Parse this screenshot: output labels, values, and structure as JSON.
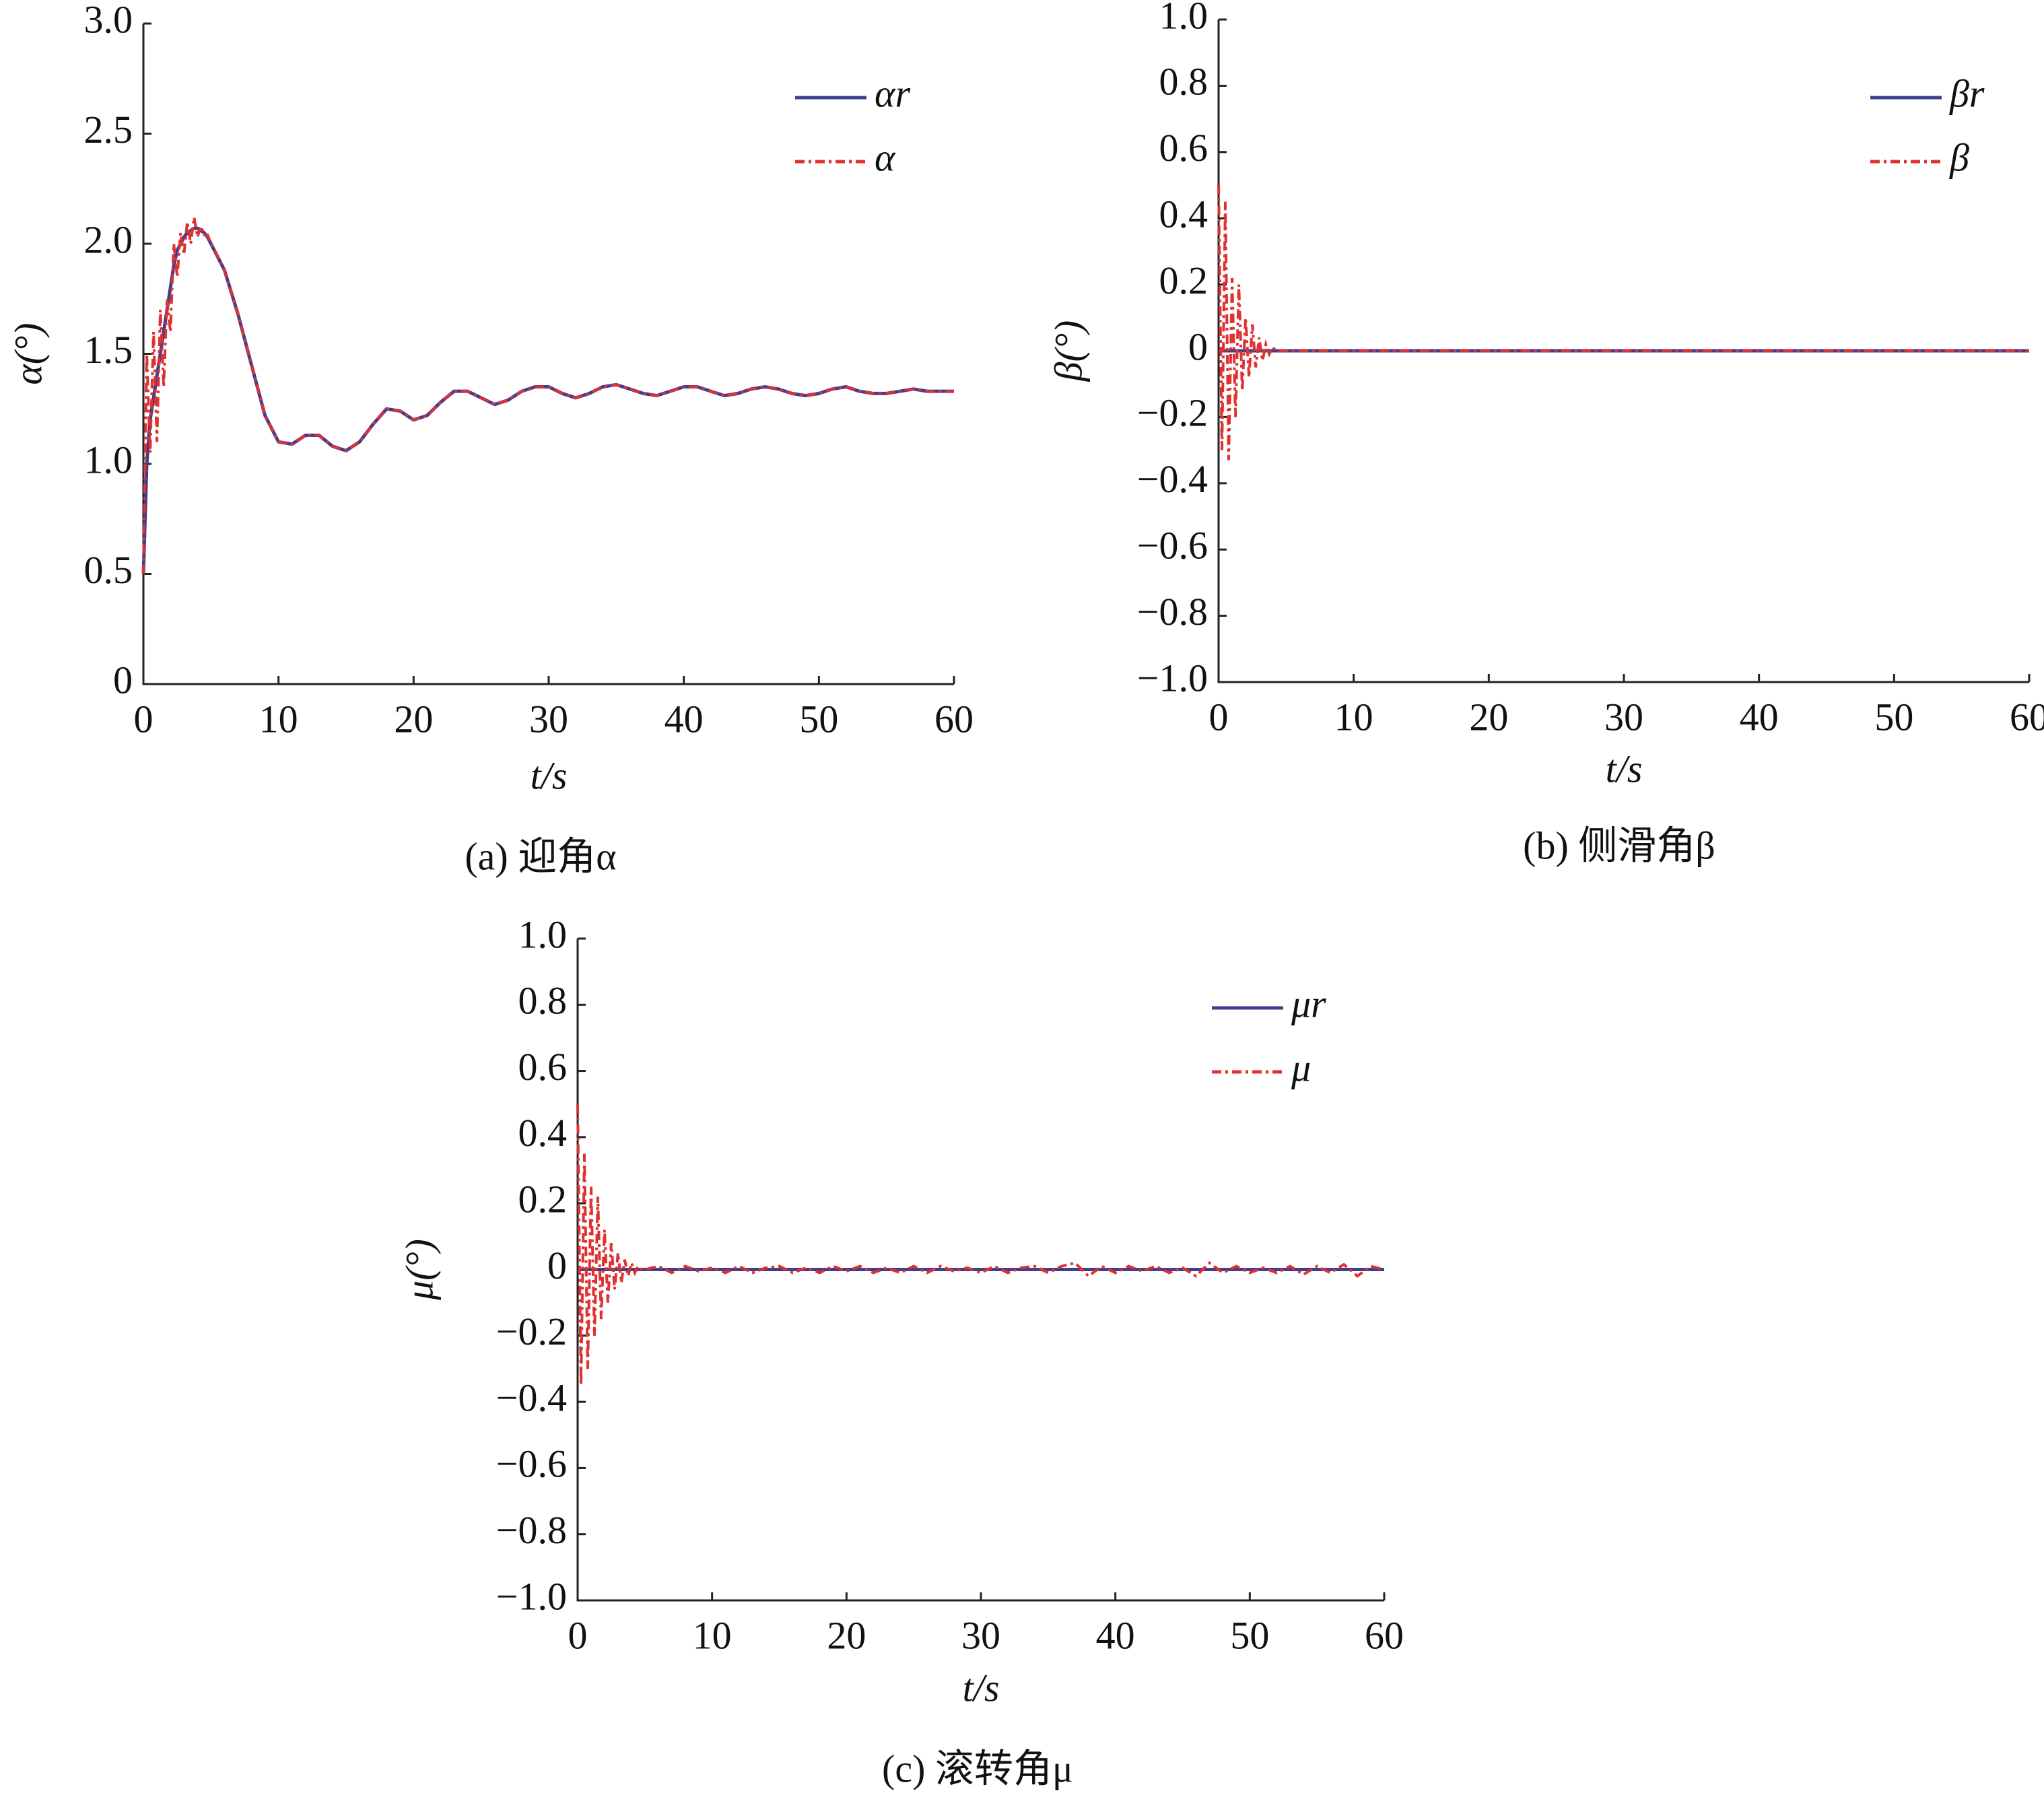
{
  "chart_data": [
    {
      "type": "line",
      "caption": "(a) 迎角α",
      "ylabel": "α(°)",
      "xlabel": "t/s",
      "x": [
        0,
        0.25,
        0.5,
        0.75,
        1,
        1.25,
        1.5,
        1.75,
        2,
        2.25,
        2.5,
        2.75,
        3,
        3.25,
        3.5,
        3.75,
        4,
        4.25,
        4.5,
        4.75,
        5,
        6,
        7,
        8,
        9,
        10,
        11,
        12,
        13,
        14,
        15,
        16,
        17,
        18,
        19,
        20,
        21,
        22,
        23,
        24,
        25,
        26,
        27,
        28,
        29,
        30,
        31,
        32,
        33,
        34,
        35,
        36,
        37,
        38,
        39,
        40,
        41,
        42,
        43,
        44,
        45,
        46,
        47,
        48,
        49,
        50,
        51,
        52,
        53,
        54,
        55,
        56,
        57,
        58,
        59,
        60
      ],
      "series": [
        {
          "name": "αr",
          "color": "#3f3f8f",
          "dash": "solid",
          "values": [
            0.5,
            1.0,
            1.2,
            1.3,
            1.4,
            1.5,
            1.6,
            1.7,
            1.8,
            1.9,
            1.97,
            2.0,
            2.03,
            2.05,
            2.06,
            2.07,
            2.07,
            2.06,
            2.05,
            2.03,
            2.0,
            1.88,
            1.68,
            1.45,
            1.22,
            1.1,
            1.09,
            1.13,
            1.13,
            1.08,
            1.06,
            1.1,
            1.18,
            1.25,
            1.24,
            1.2,
            1.22,
            1.28,
            1.33,
            1.33,
            1.3,
            1.27,
            1.29,
            1.33,
            1.35,
            1.35,
            1.32,
            1.3,
            1.32,
            1.35,
            1.36,
            1.34,
            1.32,
            1.31,
            1.33,
            1.35,
            1.35,
            1.33,
            1.31,
            1.32,
            1.34,
            1.35,
            1.34,
            1.32,
            1.31,
            1.32,
            1.34,
            1.35,
            1.33,
            1.32,
            1.32,
            1.33,
            1.34,
            1.33,
            1.33,
            1.33
          ]
        },
        {
          "name": "α",
          "color": "#e03030",
          "dash": "dashdot",
          "values": [
            0.5,
            1.5,
            1.05,
            1.6,
            1.1,
            1.7,
            1.35,
            1.75,
            1.6,
            2.0,
            1.85,
            2.05,
            1.95,
            2.1,
            2.0,
            2.12,
            2.03,
            2.08,
            2.04,
            2.04,
            2.0,
            1.88,
            1.68,
            1.45,
            1.22,
            1.1,
            1.09,
            1.13,
            1.13,
            1.08,
            1.06,
            1.1,
            1.18,
            1.25,
            1.24,
            1.2,
            1.22,
            1.28,
            1.33,
            1.33,
            1.3,
            1.27,
            1.29,
            1.33,
            1.35,
            1.35,
            1.32,
            1.3,
            1.32,
            1.35,
            1.36,
            1.34,
            1.32,
            1.31,
            1.33,
            1.35,
            1.35,
            1.33,
            1.31,
            1.32,
            1.34,
            1.35,
            1.34,
            1.32,
            1.31,
            1.32,
            1.34,
            1.35,
            1.33,
            1.32,
            1.32,
            1.33,
            1.34,
            1.33,
            1.33,
            1.33
          ]
        }
      ],
      "xlim": [
        0,
        60
      ],
      "xticks": [
        0,
        10,
        20,
        30,
        40,
        50,
        60
      ],
      "ylim": [
        0,
        3
      ],
      "yticks": [
        0,
        0.5,
        {
          "value": 1,
          "label": "1.0"
        },
        1.5,
        {
          "value": 2,
          "label": "2.0"
        },
        2.5,
        {
          "value": 3,
          "label": "3.0"
        }
      ]
    },
    {
      "type": "line",
      "caption": "(b) 侧滑角β",
      "ylabel": "β(°)",
      "xlabel": "t/s",
      "x": [
        0,
        0.25,
        0.5,
        0.75,
        1,
        1.25,
        1.5,
        1.75,
        2,
        2.25,
        2.5,
        2.75,
        3,
        3.25,
        3.5,
        3.75,
        4,
        4.25,
        4.5,
        4.75,
        5,
        6,
        7,
        8,
        9,
        10,
        11,
        12,
        13,
        14,
        15,
        16,
        17,
        18,
        19,
        20,
        21,
        22,
        23,
        24,
        25,
        26,
        27,
        28,
        29,
        30,
        31,
        32,
        33,
        34,
        35,
        36,
        37,
        38,
        39,
        40,
        41,
        42,
        43,
        44,
        45,
        46,
        47,
        48,
        49,
        50,
        51,
        52,
        53,
        54,
        55,
        56,
        57,
        58,
        59,
        60
      ],
      "series": [
        {
          "name": "βr",
          "color": "#3f3f8f",
          "dash": "solid",
          "values": [
            0,
            0,
            0,
            0,
            0,
            0,
            0,
            0,
            0,
            0,
            0,
            0,
            0,
            0,
            0,
            0,
            0,
            0,
            0,
            0,
            0,
            0,
            0,
            0,
            0,
            0,
            0,
            0,
            0,
            0,
            0,
            0,
            0,
            0,
            0,
            0,
            0,
            0,
            0,
            0,
            0,
            0,
            0,
            0,
            0,
            0,
            0,
            0,
            0,
            0,
            0,
            0,
            0,
            0,
            0,
            0,
            0,
            0,
            0,
            0,
            0,
            0,
            0,
            0,
            0,
            0,
            0,
            0,
            0,
            0,
            0,
            0,
            0,
            0,
            0,
            0
          ]
        },
        {
          "name": "β",
          "color": "#e03030",
          "dash": "dashdot",
          "values": [
            0.5,
            -0.3,
            0.45,
            -0.33,
            0.22,
            -0.2,
            0.2,
            -0.12,
            0.1,
            -0.08,
            0.08,
            -0.05,
            0.04,
            -0.03,
            0.02,
            -0.01,
            0.01,
            0,
            0,
            0,
            0,
            0,
            0,
            0,
            0,
            0,
            0,
            0,
            0,
            0,
            0,
            0,
            0,
            0,
            0,
            0,
            0,
            0,
            0,
            0,
            0,
            0,
            0,
            0,
            0,
            0,
            0,
            0,
            0,
            0,
            0,
            0,
            0,
            0,
            0,
            0,
            0,
            0,
            0,
            0,
            0,
            0,
            0,
            0,
            0,
            0,
            0,
            0,
            0,
            0,
            0,
            0,
            0,
            0,
            0,
            0
          ]
        }
      ],
      "xlim": [
        0,
        60
      ],
      "xticks": [
        0,
        10,
        20,
        30,
        40,
        50,
        60
      ],
      "ylim": [
        -1,
        1
      ],
      "yticks": [
        {
          "value": -1,
          "label": "−1.0"
        },
        {
          "value": -0.8,
          "label": "−0.8"
        },
        {
          "value": -0.6,
          "label": "−0.6"
        },
        {
          "value": -0.4,
          "label": "−0.4"
        },
        {
          "value": -0.2,
          "label": "−0.2"
        },
        0,
        0.2,
        0.4,
        0.6,
        0.8,
        {
          "value": 1,
          "label": "1.0"
        }
      ]
    },
    {
      "type": "line",
      "caption": "(c) 滚转角μ",
      "ylabel": "μ(°)",
      "xlabel": "t/s",
      "x": [
        0,
        0.25,
        0.5,
        0.75,
        1,
        1.25,
        1.5,
        1.75,
        2,
        2.25,
        2.5,
        2.75,
        3,
        3.25,
        3.5,
        3.75,
        4,
        4.25,
        4.5,
        4.75,
        5,
        6,
        7,
        8,
        9,
        10,
        11,
        12,
        13,
        14,
        15,
        16,
        17,
        18,
        19,
        20,
        21,
        22,
        23,
        24,
        25,
        26,
        27,
        28,
        29,
        30,
        31,
        32,
        33,
        34,
        35,
        36,
        37,
        38,
        39,
        40,
        41,
        42,
        43,
        44,
        45,
        46,
        47,
        48,
        49,
        50,
        51,
        52,
        53,
        54,
        55,
        56,
        57,
        58,
        59,
        60
      ],
      "series": [
        {
          "name": "μr",
          "color": "#3f3f8f",
          "dash": "solid",
          "values": [
            0,
            0,
            0,
            0,
            0,
            0,
            0,
            0,
            0,
            0,
            0,
            0,
            0,
            0,
            0,
            0,
            0,
            0,
            0,
            0,
            0,
            0,
            0,
            0,
            0,
            0,
            0,
            0,
            0,
            0,
            0,
            0,
            0,
            0,
            0,
            0,
            0,
            0,
            0,
            0,
            0,
            0,
            0,
            0,
            0,
            0,
            0,
            0,
            0,
            0,
            0,
            0,
            0,
            0,
            0,
            0,
            0,
            0,
            0,
            0,
            0,
            0,
            0,
            0,
            0,
            0,
            0,
            0,
            0,
            0,
            0,
            0,
            0,
            0,
            0,
            0
          ]
        },
        {
          "name": "μ",
          "color": "#e03030",
          "dash": "dashdot",
          "values": [
            0.5,
            -0.35,
            0.35,
            -0.3,
            0.25,
            -0.2,
            0.22,
            -0.15,
            0.12,
            -0.1,
            0.08,
            -0.06,
            0.05,
            -0.04,
            0.03,
            -0.02,
            0.02,
            -0.01,
            0.01,
            0,
            0,
            0.01,
            -0.01,
            0.01,
            -0.005,
            0.005,
            -0.01,
            0.01,
            -0.01,
            0.005,
            0.01,
            -0.01,
            0.005,
            -0.01,
            0.01,
            -0.005,
            0.01,
            -0.01,
            0.005,
            -0.01,
            0.01,
            -0.01,
            0.01,
            -0.005,
            0.005,
            -0.01,
            0.01,
            -0.01,
            0.005,
            0.01,
            -0.01,
            0.01,
            0.02,
            -0.02,
            0.01,
            -0.01,
            0.01,
            -0.005,
            0.01,
            -0.01,
            0.005,
            -0.02,
            0.02,
            -0.01,
            0.01,
            -0.01,
            0.005,
            -0.01,
            0.01,
            -0.015,
            0.01,
            -0.01,
            0.015,
            -0.02,
            0.01,
            0
          ]
        }
      ],
      "xlim": [
        0,
        60
      ],
      "xticks": [
        0,
        10,
        20,
        30,
        40,
        50,
        60
      ],
      "ylim": [
        -1,
        1
      ],
      "yticks": [
        {
          "value": -1,
          "label": "−1.0"
        },
        {
          "value": -0.8,
          "label": "−0.8"
        },
        {
          "value": -0.6,
          "label": "−0.6"
        },
        {
          "value": -0.4,
          "label": "−0.4"
        },
        {
          "value": -0.2,
          "label": "−0.2"
        },
        0,
        0.2,
        0.4,
        0.6,
        0.8,
        {
          "value": 1,
          "label": "1.0"
        }
      ]
    }
  ]
}
